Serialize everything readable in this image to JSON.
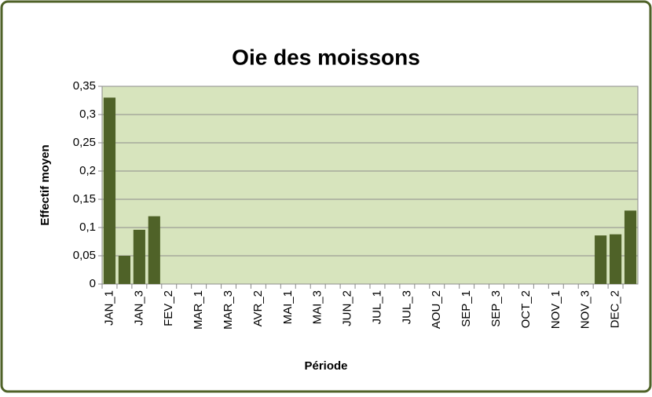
{
  "chart_data": {
    "type": "bar",
    "title": "Oie des moissons",
    "x_label": "Période",
    "y_label": "Effectif moyen",
    "categories": [
      "JAN_1",
      null,
      "JAN_3",
      null,
      "FEV_2",
      null,
      "MAR_1",
      null,
      "MAR_3",
      null,
      "AVR_2",
      null,
      "MAI_1",
      null,
      "MAI_3",
      null,
      "JUN_2",
      null,
      "JUL_1",
      null,
      "JUL_3",
      null,
      "AOU_2",
      null,
      "SEP_1",
      null,
      "SEP_3",
      null,
      "OCT_2",
      null,
      "NOV_1",
      null,
      "NOV_3",
      null,
      "DEC_2",
      null
    ],
    "values": [
      0.33,
      0.05,
      0.096,
      0.12,
      0,
      0,
      0,
      0,
      0,
      0,
      0,
      0,
      0,
      0,
      0,
      0,
      0,
      0,
      0,
      0,
      0,
      0,
      0,
      0,
      0,
      0,
      0,
      0,
      0,
      0,
      0,
      0,
      0,
      0.086,
      0.088,
      0.13
    ],
    "color": "#4f6228",
    "ylim": [
      0,
      0.35
    ],
    "yticks": [
      0,
      {
        "value": 0.05,
        "label": "0,05"
      },
      {
        "value": 0.1,
        "label": "0,1"
      },
      {
        "value": 0.15,
        "label": "0,15"
      },
      {
        "value": 0.2,
        "label": "0,2"
      },
      {
        "value": 0.25,
        "label": "0,25"
      },
      {
        "value": 0.3,
        "label": "0,3"
      },
      {
        "value": 0.35,
        "label": "0,35"
      }
    ],
    "grid": true
  }
}
